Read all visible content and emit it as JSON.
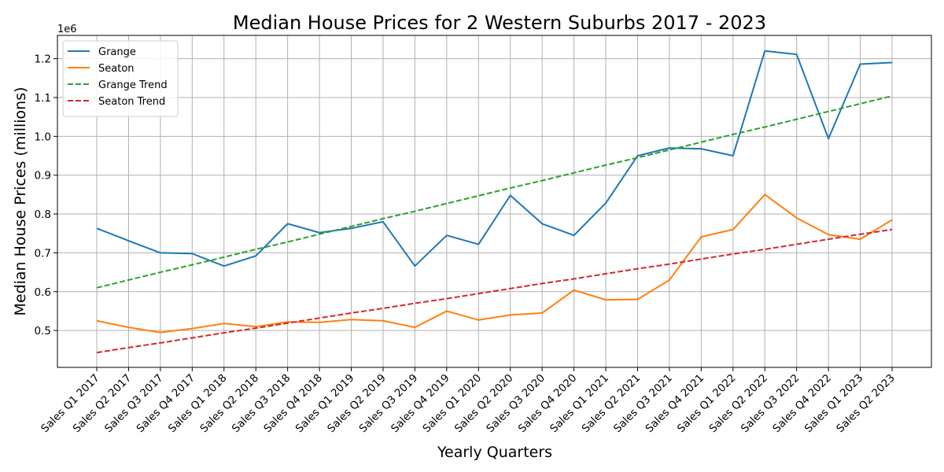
{
  "chart_data": {
    "type": "line",
    "title": "Median House Prices for 2 Western Suburbs 2017 - 2023",
    "xlabel": "Yearly Quarters",
    "ylabel": "Median House Prices (millions)",
    "y_offset_label": "1e6",
    "y_ticks": [
      0.5,
      0.6,
      0.7,
      0.8,
      0.9,
      1.0,
      1.1,
      1.2
    ],
    "y_tick_labels": [
      "0.5",
      "0.6",
      "0.7",
      "0.8",
      "0.9",
      "1.0",
      "1.1",
      "1.2"
    ],
    "ylim": [
      0.405,
      1.26
    ],
    "grid": true,
    "legend_position": "upper-left",
    "categories": [
      "Sales Q1 2017",
      "Sales Q2 2017",
      "Sales Q3 2017",
      "Sales Q4 2017",
      "Sales Q1 2018",
      "Sales Q2 2018",
      "Sales Q3 2018",
      "Sales Q4 2018",
      "Sales Q1 2019",
      "Sales Q2 2019",
      "Sales Q3 2019",
      "Sales Q4 2019",
      "Sales Q1 2020",
      "Sales Q2 2020",
      "Sales Q3 2020",
      "Sales Q4 2020",
      "Sales Q1 2021",
      "Sales Q2 2021",
      "Sales Q3 2021",
      "Sales Q4 2021",
      "Sales Q1 2022",
      "Sales Q2 2022",
      "Sales Q3 2022",
      "Sales Q4 2022",
      "Sales Q1 2023",
      "Sales Q2 2023"
    ],
    "series": [
      {
        "name": "Grange",
        "color": "#1f77b4",
        "dashed": false,
        "values": [
          0.763,
          0.731,
          0.7,
          0.698,
          0.666,
          0.692,
          0.775,
          0.752,
          0.763,
          0.78,
          0.666,
          0.745,
          0.722,
          0.848,
          0.775,
          0.745,
          0.828,
          0.95,
          0.97,
          0.968,
          0.95,
          1.22,
          1.211,
          0.994,
          1.186,
          1.19
        ]
      },
      {
        "name": "Seaton",
        "color": "#ff7f0e",
        "dashed": false,
        "values": [
          0.525,
          0.508,
          0.495,
          0.505,
          0.518,
          0.51,
          0.522,
          0.521,
          0.528,
          0.525,
          0.508,
          0.55,
          0.527,
          0.54,
          0.545,
          0.604,
          0.579,
          0.58,
          0.63,
          0.741,
          0.76,
          0.85,
          0.79,
          0.747,
          0.735,
          0.785
        ]
      },
      {
        "name": "Grange Trend",
        "color": "#2ca02c",
        "dashed": true,
        "values": [
          0.61,
          0.63,
          0.65,
          0.669,
          0.689,
          0.709,
          0.728,
          0.748,
          0.768,
          0.788,
          0.807,
          0.827,
          0.847,
          0.867,
          0.886,
          0.906,
          0.926,
          0.945,
          0.965,
          0.985,
          1.005,
          1.024,
          1.044,
          1.064,
          1.084,
          1.104
        ]
      },
      {
        "name": "Seaton Trend",
        "color": "#d62728",
        "dashed": true,
        "values": [
          0.443,
          0.456,
          0.468,
          0.481,
          0.494,
          0.506,
          0.519,
          0.532,
          0.545,
          0.557,
          0.57,
          0.582,
          0.595,
          0.608,
          0.621,
          0.633,
          0.646,
          0.659,
          0.671,
          0.684,
          0.697,
          0.709,
          0.722,
          0.735,
          0.748,
          0.76
        ]
      }
    ]
  }
}
